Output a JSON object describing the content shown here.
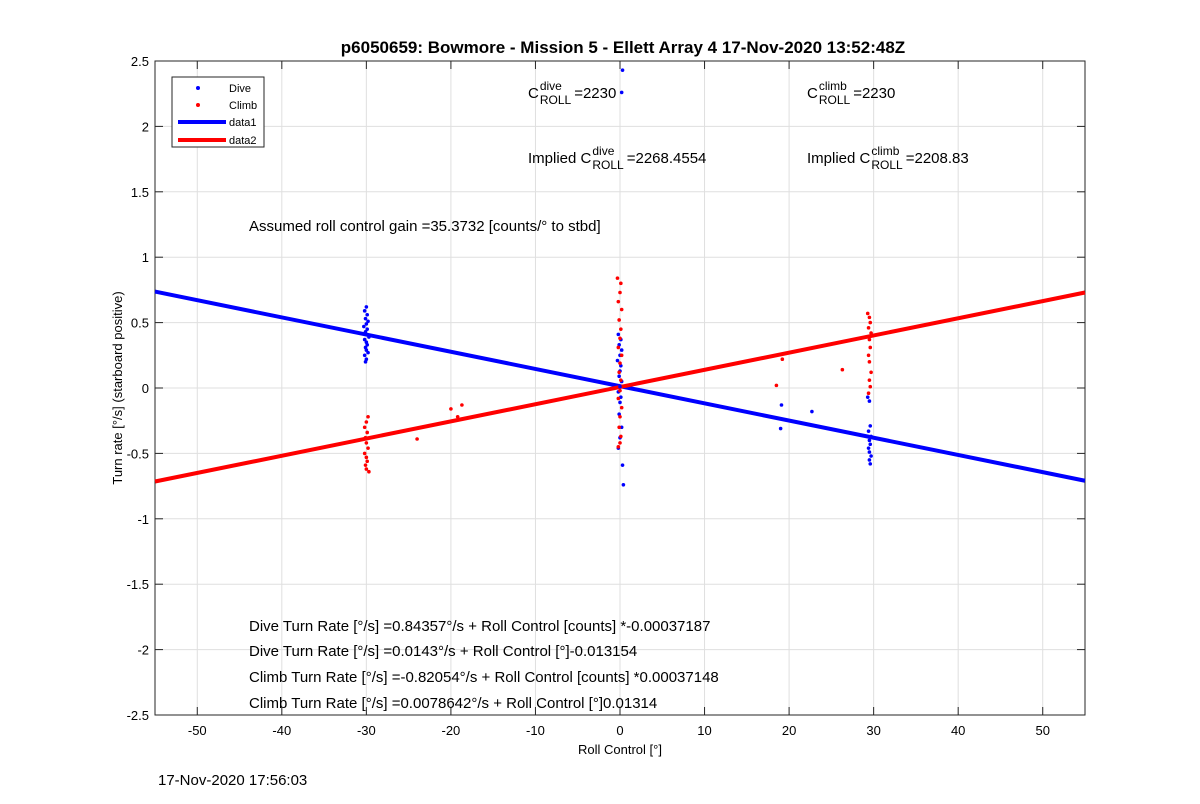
{
  "chart_data": {
    "type": "scatter",
    "title": "p6050659: Bowmore - Mission 5 - Ellett Array 4 17-Nov-2020 13:52:48Z",
    "xlabel": "Roll Control [°]",
    "ylabel": "Turn rate [°/s] (starboard positive)",
    "xlim": [
      -55,
      55
    ],
    "ylim": [
      -2.5,
      2.5
    ],
    "x_ticks": [
      -50,
      -40,
      -30,
      -20,
      -10,
      0,
      10,
      20,
      30,
      40,
      50
    ],
    "y_ticks": [
      -2.5,
      -2,
      -1.5,
      -1,
      -0.5,
      0,
      0.5,
      1,
      1.5,
      2,
      2.5
    ],
    "grid": true,
    "legend_position": "top-left",
    "series": [
      {
        "name": "Dive",
        "kind": "points",
        "color": "#0000ff",
        "points": [
          [
            -30.0,
            0.62
          ],
          [
            -30.2,
            0.59
          ],
          [
            -29.9,
            0.56
          ],
          [
            -30.1,
            0.53
          ],
          [
            -29.8,
            0.51
          ],
          [
            -30.0,
            0.49
          ],
          [
            -30.3,
            0.47
          ],
          [
            -29.9,
            0.45
          ],
          [
            -30.1,
            0.43
          ],
          [
            -30.0,
            0.41
          ],
          [
            -29.7,
            0.39
          ],
          [
            -30.2,
            0.37
          ],
          [
            -30.0,
            0.35
          ],
          [
            -29.9,
            0.33
          ],
          [
            -30.1,
            0.31
          ],
          [
            -30.0,
            0.29
          ],
          [
            -29.8,
            0.27
          ],
          [
            -30.2,
            0.25
          ],
          [
            -30.0,
            0.22
          ],
          [
            -30.1,
            0.2
          ],
          [
            0.3,
            2.43
          ],
          [
            0.2,
            2.26
          ],
          [
            -0.2,
            0.41
          ],
          [
            0.1,
            0.37
          ],
          [
            -0.1,
            0.33
          ],
          [
            0.2,
            0.29
          ],
          [
            0.0,
            0.25
          ],
          [
            -0.3,
            0.21
          ],
          [
            0.1,
            0.17
          ],
          [
            0.0,
            0.13
          ],
          [
            -0.1,
            0.09
          ],
          [
            0.2,
            0.05
          ],
          [
            0.0,
            0.01
          ],
          [
            -0.2,
            -0.03
          ],
          [
            0.1,
            -0.07
          ],
          [
            0.0,
            -0.11
          ],
          [
            -0.1,
            -0.2
          ],
          [
            0.2,
            -0.3
          ],
          [
            0.0,
            -0.38
          ],
          [
            -0.2,
            -0.46
          ],
          [
            0.3,
            -0.59
          ],
          [
            0.4,
            -0.74
          ],
          [
            19.1,
            -0.13
          ],
          [
            19.0,
            -0.31
          ],
          [
            22.7,
            -0.18
          ],
          [
            29.3,
            -0.07
          ],
          [
            29.5,
            -0.1
          ],
          [
            29.6,
            -0.29
          ],
          [
            29.4,
            -0.33
          ],
          [
            29.7,
            -0.37
          ],
          [
            29.5,
            -0.4
          ],
          [
            29.6,
            -0.43
          ],
          [
            29.4,
            -0.46
          ],
          [
            29.5,
            -0.49
          ],
          [
            29.7,
            -0.52
          ],
          [
            29.5,
            -0.55
          ],
          [
            29.6,
            -0.58
          ]
        ]
      },
      {
        "name": "Climb",
        "kind": "points",
        "color": "#ff0000",
        "points": [
          [
            -29.8,
            -0.22
          ],
          [
            -30.0,
            -0.26
          ],
          [
            -30.2,
            -0.3
          ],
          [
            -29.9,
            -0.34
          ],
          [
            -30.1,
            -0.38
          ],
          [
            -30.0,
            -0.42
          ],
          [
            -29.8,
            -0.46
          ],
          [
            -30.2,
            -0.5
          ],
          [
            -30.0,
            -0.53
          ],
          [
            -29.9,
            -0.56
          ],
          [
            -30.1,
            -0.59
          ],
          [
            -30.0,
            -0.62
          ],
          [
            -29.7,
            -0.64
          ],
          [
            -24.0,
            -0.39
          ],
          [
            -20.0,
            -0.16
          ],
          [
            -19.2,
            -0.22
          ],
          [
            -18.7,
            -0.13
          ],
          [
            -0.3,
            0.84
          ],
          [
            0.1,
            0.8
          ],
          [
            0.0,
            0.73
          ],
          [
            -0.2,
            0.66
          ],
          [
            0.2,
            0.6
          ],
          [
            -0.1,
            0.52
          ],
          [
            0.1,
            0.45
          ],
          [
            0.0,
            0.38
          ],
          [
            -0.2,
            0.31
          ],
          [
            0.2,
            0.25
          ],
          [
            0.0,
            0.19
          ],
          [
            -0.1,
            0.12
          ],
          [
            0.1,
            0.06
          ],
          [
            0.0,
            -0.02
          ],
          [
            -0.2,
            -0.08
          ],
          [
            0.2,
            -0.15
          ],
          [
            0.0,
            -0.22
          ],
          [
            -0.1,
            -0.3
          ],
          [
            0.1,
            -0.37
          ],
          [
            0.0,
            -0.42
          ],
          [
            -0.2,
            -0.45
          ],
          [
            18.5,
            0.02
          ],
          [
            19.2,
            0.22
          ],
          [
            26.3,
            0.14
          ],
          [
            29.3,
            0.57
          ],
          [
            29.5,
            0.54
          ],
          [
            29.6,
            0.5
          ],
          [
            29.4,
            0.46
          ],
          [
            29.7,
            0.42
          ],
          [
            29.5,
            0.37
          ],
          [
            29.6,
            0.31
          ],
          [
            29.4,
            0.25
          ],
          [
            29.5,
            0.2
          ],
          [
            29.7,
            0.12
          ],
          [
            29.5,
            0.06
          ],
          [
            29.6,
            0.01
          ],
          [
            29.4,
            -0.04
          ]
        ]
      },
      {
        "name": "data1",
        "kind": "line",
        "color": "#0000ff",
        "x": [
          -55,
          55
        ],
        "y": [
          0.737,
          -0.709
        ]
      },
      {
        "name": "data2",
        "kind": "line",
        "color": "#ff0000",
        "x": [
          -55,
          55
        ],
        "y": [
          -0.715,
          0.73
        ]
      }
    ],
    "annotations": {
      "c_dive": {
        "base": "C",
        "sup": "dive",
        "sub": "ROLL",
        "suffix": "=2230"
      },
      "c_climb": {
        "base": "C",
        "sup": "climb",
        "sub": "ROLL",
        "suffix": "=2230"
      },
      "implied_dive": {
        "prefix": "Implied C",
        "sup": "dive",
        "sub": "ROLL",
        "suffix": "=2268.4554"
      },
      "implied_climb": {
        "prefix": "Implied C",
        "sup": "climb",
        "sub": "ROLL",
        "suffix": "=2208.83"
      },
      "gain": "Assumed roll control gain =35.3732 [counts/° to stbd]",
      "fits": [
        "Dive Turn Rate [°/s] =0.84357°/s + Roll Control [counts] *-0.00037187",
        "Dive Turn Rate [°/s] =0.0143°/s + Roll Control [°]-0.013154",
        "Climb Turn Rate [°/s] =-0.82054°/s + Roll Control [counts] *0.00037148",
        "Climb Turn Rate [°/s] =0.0078642°/s + Roll Control [°]0.01314"
      ]
    }
  },
  "footer_timestamp": "17-Nov-2020 17:56:03"
}
